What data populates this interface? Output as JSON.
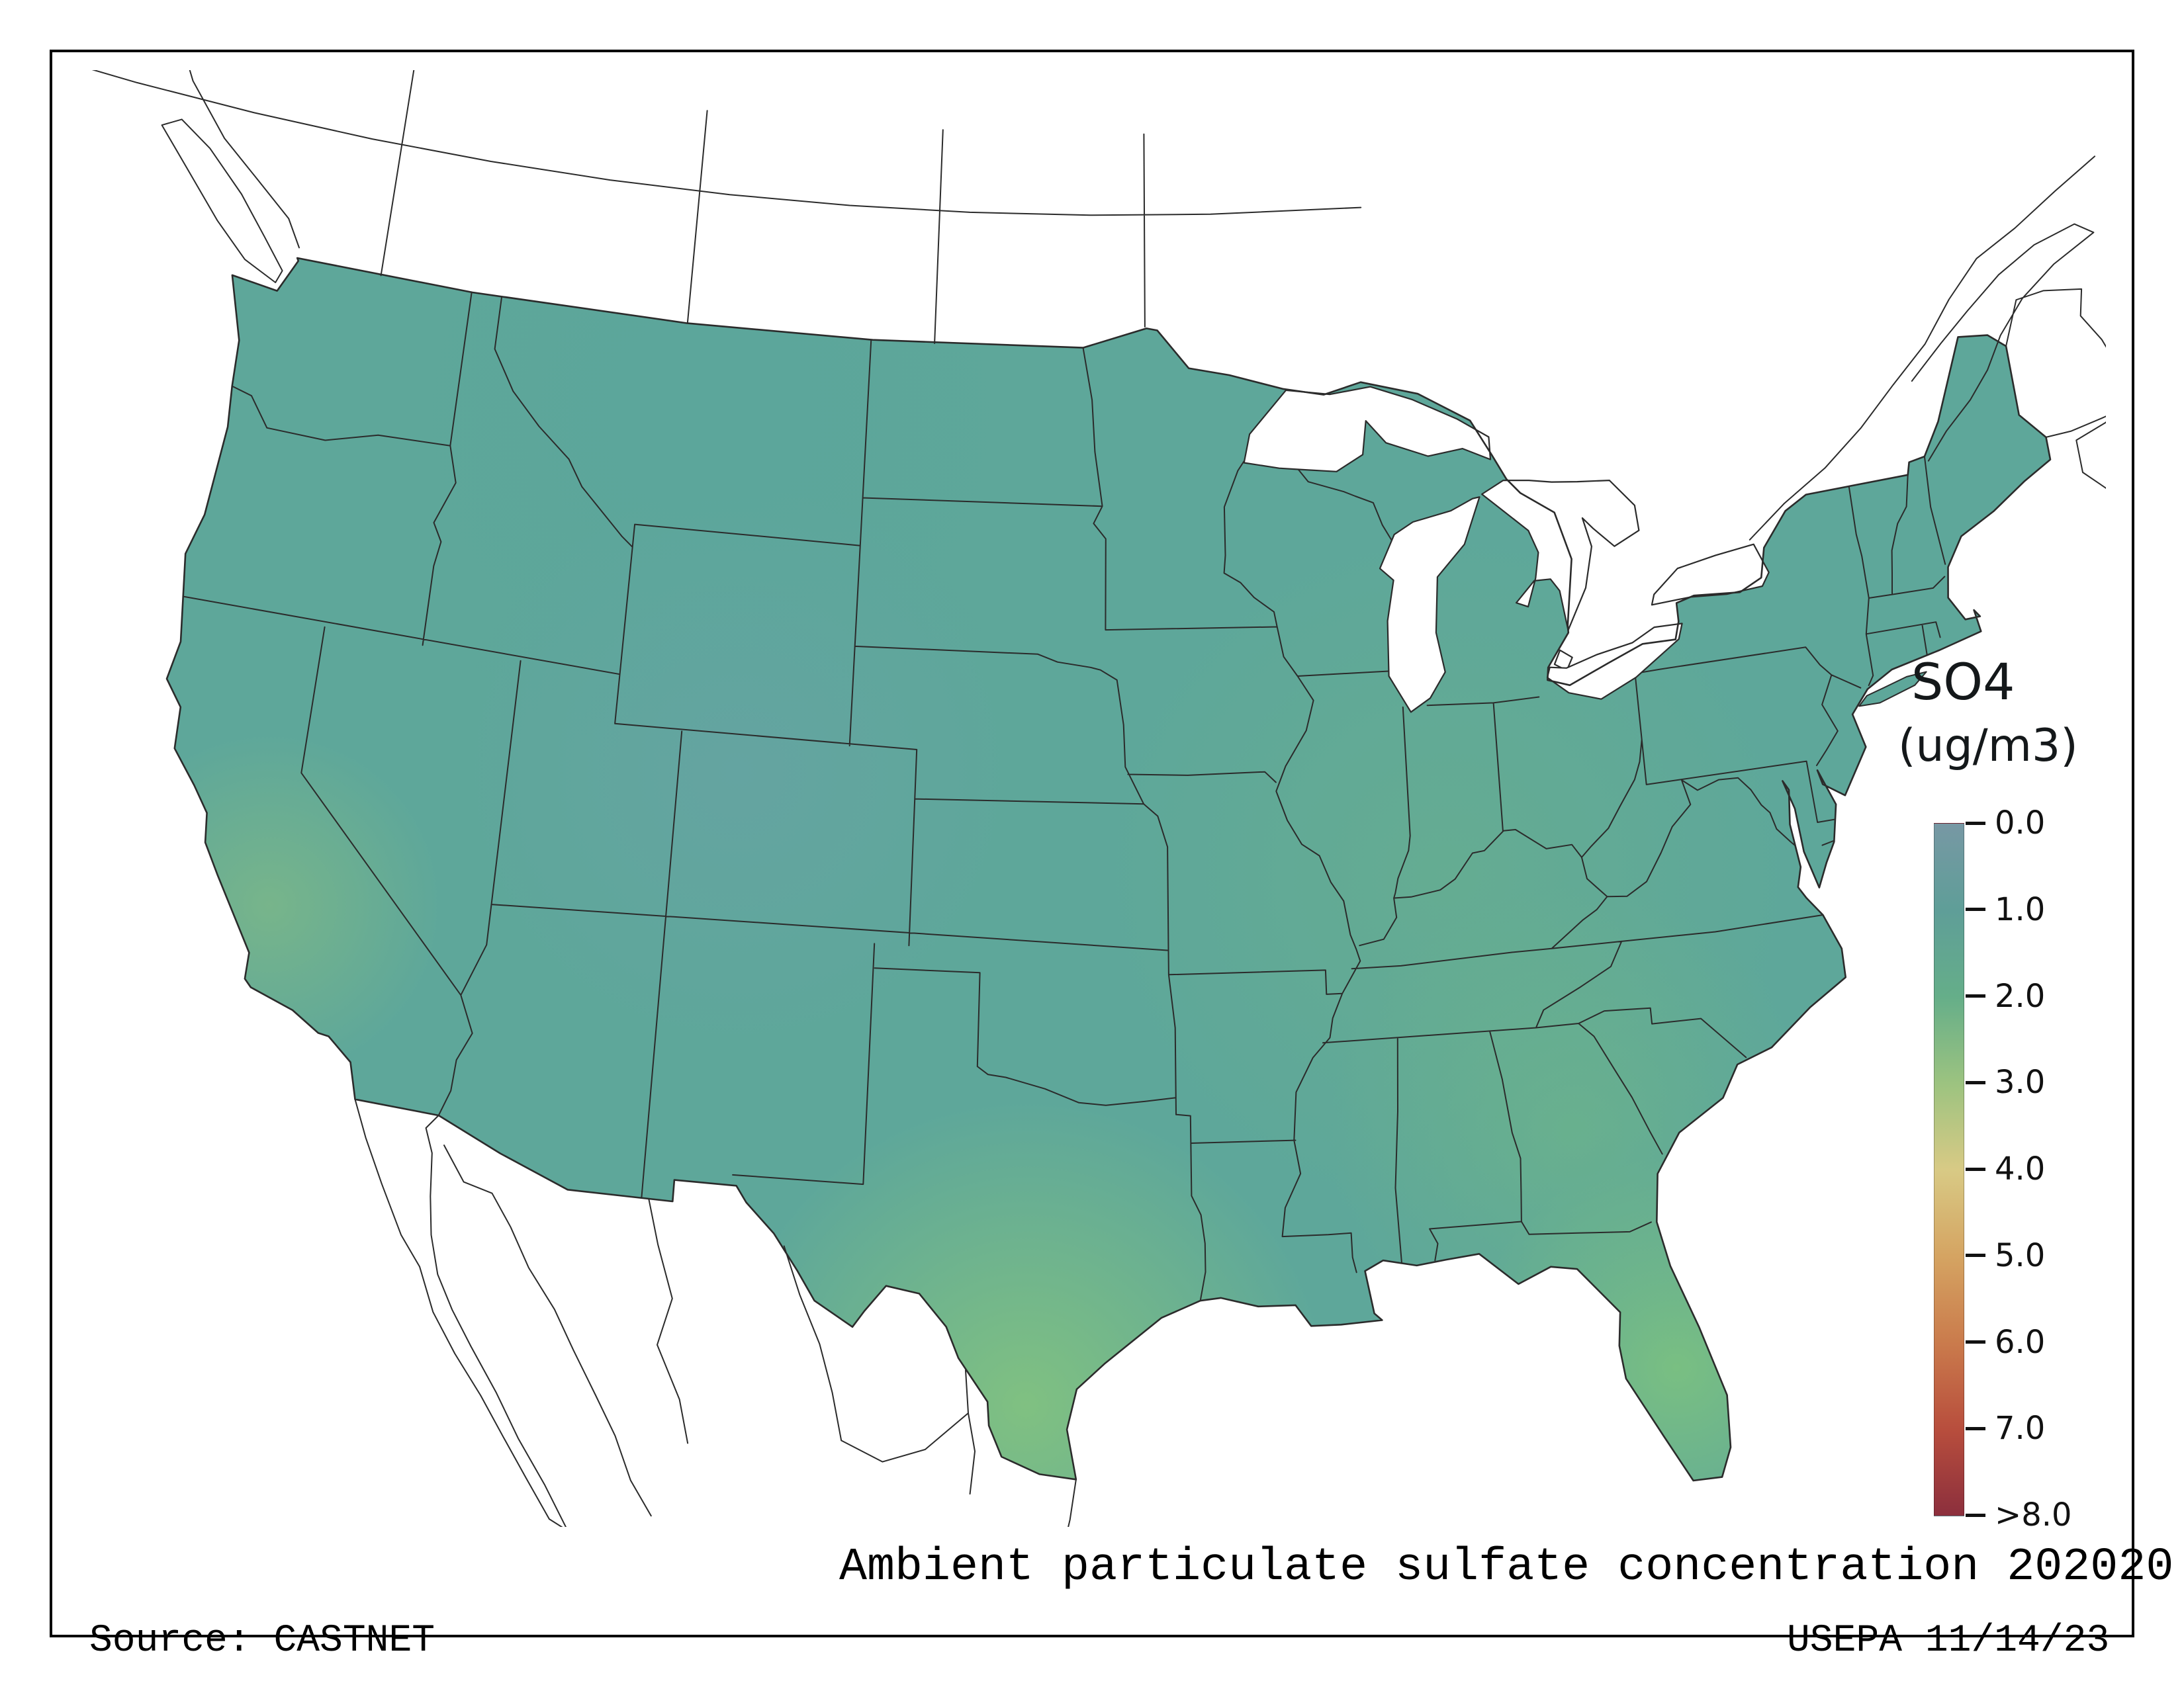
{
  "window": {
    "background": "#ffffff",
    "frame_color": "#000000"
  },
  "titles": {
    "main": "Ambient particulate sulfate concentration 202020",
    "source": "Source: CASTNET",
    "agency_date": "USEPA 11/14/23"
  },
  "legend": {
    "title": "SO4",
    "units": "(ug/m3)",
    "tick_labels": [
      "0.0",
      "1.0",
      "2.0",
      "3.0",
      "4.0",
      "5.0",
      "6.0",
      "7.0",
      ">8.0"
    ],
    "stops": [
      "#7798a4",
      "#5f9e98",
      "#65ae89",
      "#9cc380",
      "#d8ca85",
      "#d5a462",
      "#ca7b4c",
      "#b84e3d",
      "#8c2f3d"
    ],
    "tick_color": "#111111",
    "label_color": "#111111"
  },
  "map": {
    "land_base_color": "#5ea79a",
    "border_color": "#2b2b2b",
    "water_color": "#ffffff",
    "field_accents": [
      {
        "region": "south-texas",
        "color": "#86c57d"
      },
      {
        "region": "florida",
        "color": "#80c57c"
      },
      {
        "region": "central-california",
        "color": "#8cc07e"
      },
      {
        "region": "colorado-rockies",
        "color": "#6ba1a8"
      },
      {
        "region": "ohio-valley",
        "color": "#6db288"
      },
      {
        "region": "georgia-alabama",
        "color": "#72b884"
      },
      {
        "region": "northern-rockies",
        "color": "#57a49d"
      }
    ]
  }
}
